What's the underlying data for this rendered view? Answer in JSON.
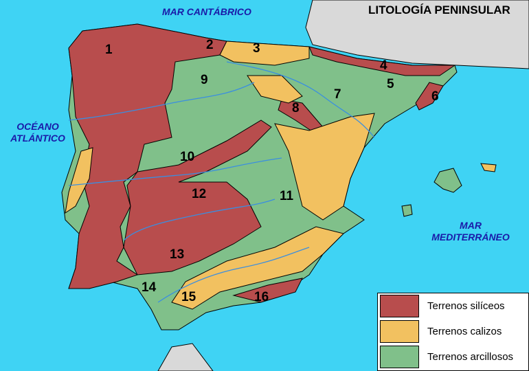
{
  "title": "LITOLOGÍA PENINSULAR",
  "seas": {
    "cantabrico": "MAR CANTÁBRICO",
    "atlantico_1": "OCÉANO",
    "atlantico_2": "ATLÁNTICO",
    "mediterraneo_1": "MAR",
    "mediterraneo_2": "MEDITERRÁNEO"
  },
  "regions": [
    "1",
    "2",
    "3",
    "4",
    "5",
    "6",
    "7",
    "8",
    "9",
    "10",
    "11",
    "12",
    "13",
    "14",
    "15",
    "16"
  ],
  "legend": [
    {
      "label": "Terrenos silíceos",
      "color": "#b84d4d"
    },
    {
      "label": "Terrenos calizos",
      "color": "#f2c160"
    },
    {
      "label": "Terrenos arcillosos",
      "color": "#80c08a"
    }
  ],
  "colors": {
    "sea": "#3fd3f4",
    "foreign_land": "#d9d9d9",
    "rivers": "#3a8ee0"
  }
}
